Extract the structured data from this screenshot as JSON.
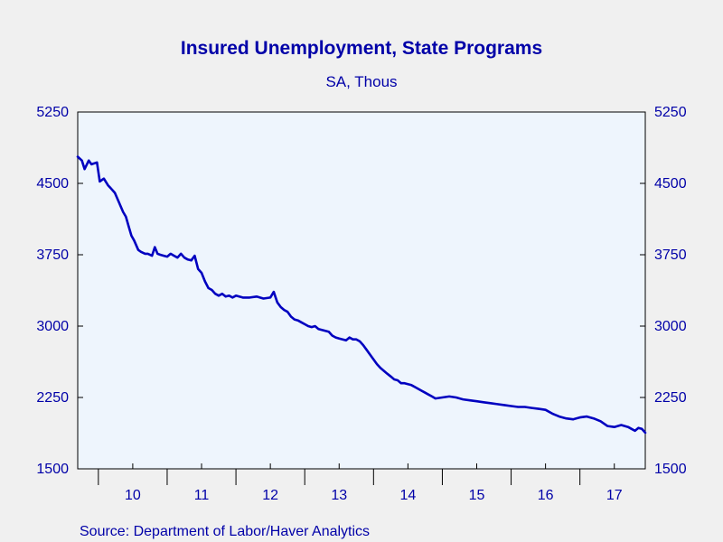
{
  "colors": {
    "background": "#f0f0f0",
    "plot_background": "#eef5fd",
    "axis": "#000000",
    "text": "#0000a8",
    "series": "#0000c0"
  },
  "source": "Source:  Department of Labor/Haver Analytics",
  "chart_data": {
    "type": "line",
    "title": "Insured Unemployment, State Programs",
    "subtitle": "SA, Thous",
    "xlabel": "",
    "ylabel": "",
    "ylim": [
      1500,
      5250
    ],
    "xlim": [
      2009.7,
      2017.95
    ],
    "y_ticks": [
      1500,
      2250,
      3000,
      3750,
      4500,
      5250
    ],
    "y_tick_labels": [
      "1500",
      "2250",
      "3000",
      "3750",
      "4500",
      "5250"
    ],
    "x_tick_labels": [
      "10",
      "11",
      "12",
      "13",
      "14",
      "15",
      "16",
      "17"
    ],
    "x_tick_positions": [
      2010,
      2011,
      2012,
      2013,
      2014,
      2015,
      2016,
      2017
    ],
    "grid": false,
    "legend": "none",
    "series": [
      {
        "x": [
          2009.7,
          2009.76,
          2009.8,
          2009.86,
          2009.9,
          2009.98,
          2010.02,
          2010.08,
          2010.14,
          2010.18,
          2010.24,
          2010.3,
          2010.36,
          2010.4,
          2010.44,
          2010.48,
          2010.52,
          2010.58,
          2010.62,
          2010.68,
          2010.72,
          2010.78,
          2010.82,
          2010.86,
          2010.9,
          2010.95,
          2011.0,
          2011.05,
          2011.1,
          2011.15,
          2011.2,
          2011.25,
          2011.3,
          2011.35,
          2011.4,
          2011.45,
          2011.5,
          2011.55,
          2011.6,
          2011.65,
          2011.7,
          2011.75,
          2011.8,
          2011.85,
          2011.9,
          2011.95,
          2012.0,
          2012.1,
          2012.2,
          2012.3,
          2012.4,
          2012.5,
          2012.55,
          2012.6,
          2012.65,
          2012.7,
          2012.75,
          2012.8,
          2012.85,
          2012.9,
          2012.95,
          2013.0,
          2013.05,
          2013.1,
          2013.15,
          2013.2,
          2013.25,
          2013.3,
          2013.35,
          2013.4,
          2013.45,
          2013.5,
          2013.55,
          2013.6,
          2013.65,
          2013.7,
          2013.75,
          2013.8,
          2013.85,
          2013.9,
          2013.95,
          2014.0,
          2014.05,
          2014.1,
          2014.15,
          2014.2,
          2014.25,
          2014.3,
          2014.35,
          2014.4,
          2014.45,
          2014.5,
          2014.55,
          2014.6,
          2014.65,
          2014.7,
          2014.75,
          2014.8,
          2014.85,
          2014.9,
          2015.0,
          2015.1,
          2015.2,
          2015.3,
          2015.4,
          2015.5,
          2015.6,
          2015.7,
          2015.8,
          2015.9,
          2016.0,
          2016.1,
          2016.2,
          2016.3,
          2016.4,
          2016.5,
          2016.6,
          2016.7,
          2016.8,
          2016.9,
          2017.0,
          2017.1,
          2017.2,
          2017.3,
          2017.4,
          2017.5,
          2017.6,
          2017.65,
          2017.7,
          2017.75,
          2017.8,
          2017.85,
          2017.9,
          2017.95
        ],
        "values": [
          4780,
          4740,
          4650,
          4740,
          4700,
          4720,
          4520,
          4550,
          4480,
          4450,
          4400,
          4300,
          4200,
          4150,
          4050,
          3950,
          3900,
          3800,
          3780,
          3760,
          3760,
          3740,
          3830,
          3760,
          3750,
          3740,
          3730,
          3760,
          3740,
          3720,
          3760,
          3720,
          3700,
          3690,
          3740,
          3600,
          3560,
          3470,
          3400,
          3380,
          3340,
          3320,
          3340,
          3310,
          3320,
          3300,
          3320,
          3300,
          3300,
          3310,
          3290,
          3300,
          3360,
          3250,
          3200,
          3170,
          3150,
          3100,
          3070,
          3060,
          3040,
          3020,
          3000,
          2990,
          3000,
          2970,
          2960,
          2950,
          2940,
          2900,
          2880,
          2870,
          2860,
          2850,
          2880,
          2860,
          2860,
          2840,
          2800,
          2750,
          2700,
          2650,
          2600,
          2560,
          2530,
          2500,
          2470,
          2440,
          2430,
          2400,
          2400,
          2390,
          2380,
          2360,
          2340,
          2320,
          2300,
          2280,
          2260,
          2240,
          2250,
          2260,
          2250,
          2230,
          2220,
          2210,
          2200,
          2190,
          2180,
          2170,
          2160,
          2150,
          2150,
          2140,
          2130,
          2120,
          2080,
          2050,
          2030,
          2020,
          2040,
          2050,
          2030,
          2000,
          1950,
          1940,
          1960,
          1950,
          1940,
          1920,
          1900,
          1930,
          1920,
          1880
        ]
      }
    ]
  }
}
